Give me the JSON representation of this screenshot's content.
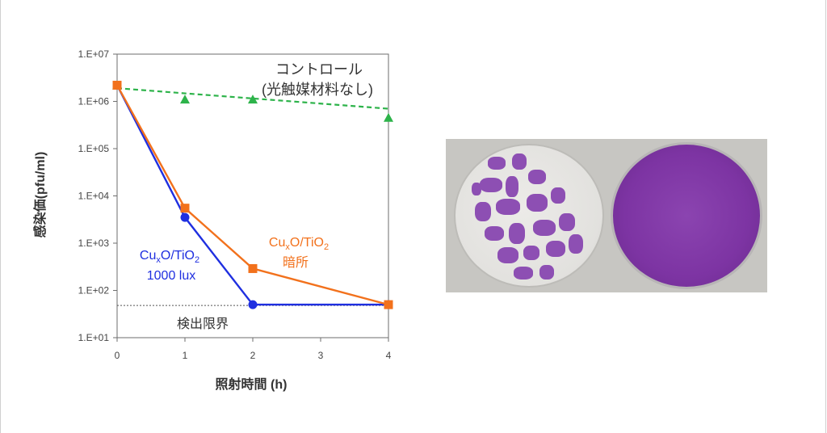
{
  "chart_data": {
    "type": "line",
    "x": [
      0,
      1,
      2,
      4
    ],
    "xticks": [
      "0",
      "1",
      "2",
      "3",
      "4"
    ],
    "xlabel": "照射時間 (h)",
    "ylabel": "感染価(pfu/ml)",
    "yscale": "log",
    "ylim": [
      10,
      10000000
    ],
    "yticks": [
      "1.E+01",
      "1.E+02",
      "1.E+03",
      "1.E+04",
      "1.E+05",
      "1.E+06",
      "1.E+07"
    ],
    "series": [
      {
        "key": "control",
        "values": [
          2200000,
          1100000,
          1100000,
          450000
        ],
        "color": "#2db34a",
        "style": "dashed",
        "marker": "triangle"
      },
      {
        "key": "light",
        "values": [
          2200000,
          3500,
          50,
          50
        ],
        "color": "#1f2fe0",
        "style": "solid",
        "marker": "circle"
      },
      {
        "key": "dark",
        "values": [
          2200000,
          5500,
          290,
          50
        ],
        "color": "#f2711c",
        "style": "solid",
        "marker": "square"
      }
    ],
    "detection_limit": 48,
    "annotations": {
      "control_line1": "コントロール",
      "control_line2": "(光触媒材料なし)",
      "light_label_line1": "CuxO/TiO2",
      "light_label_line2": "1000 lux",
      "dark_label_line1": "CuxO/TiO2",
      "dark_label_line2": "暗所",
      "detection_limit_label": "検出限界"
    },
    "grid": false
  }
}
